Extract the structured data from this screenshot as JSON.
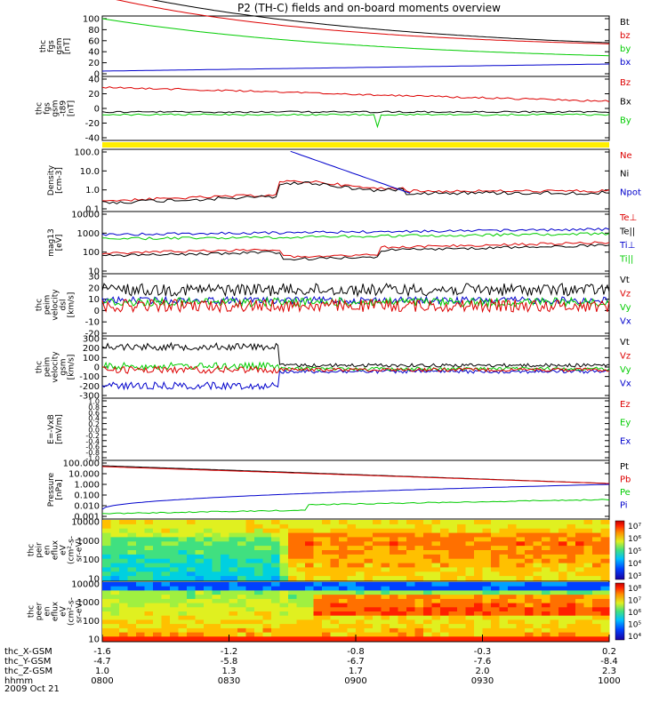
{
  "chart_data": {
    "type": "line",
    "title": "P2 (TH-C) fields and on-board moments overview",
    "date": "2009 Oct 21",
    "x_tick_labels": [
      "0800",
      "0830",
      "0900",
      "0930",
      "1000"
    ],
    "x_range_hhmm": [
      "0800",
      "1000"
    ],
    "ephemeris": [
      {
        "label": "thc_X-GSM",
        "values": [
          "-1.6",
          "-1.2",
          "-0.8",
          "-0.3",
          "0.2"
        ]
      },
      {
        "label": "thc_Y-GSM",
        "values": [
          "-4.7",
          "-5.8",
          "-6.7",
          "-7.6",
          "-8.4"
        ]
      },
      {
        "label": "thc_Z-GSM",
        "values": [
          "1.0",
          "1.3",
          "1.7",
          "2.0",
          "2.3"
        ]
      },
      {
        "label": "hhmm",
        "values": [
          "0800",
          "0830",
          "0900",
          "0930",
          "1000"
        ]
      }
    ],
    "panels": [
      {
        "ylabel": [
          "thc",
          "fgs",
          "gsm",
          "[nT]"
        ],
        "ticks": [
          "100",
          "80",
          "60",
          "40",
          "20",
          "0"
        ],
        "series": [
          {
            "name": "Bt",
            "color": "#000000"
          },
          {
            "name": "bz",
            "color": "#dd0000"
          },
          {
            "name": "by",
            "color": "#00cc00"
          },
          {
            "name": "bx",
            "color": "#0000cc"
          }
        ]
      },
      {
        "ylabel": [
          "thc",
          "fgs",
          "gsm",
          "-t89",
          "[nT]"
        ],
        "ticks": [
          "40",
          "20",
          "0",
          "-20",
          "-40"
        ],
        "series": [
          {
            "name": "Bz",
            "color": "#dd0000"
          },
          {
            "name": "Bx",
            "color": "#000000"
          },
          {
            "name": "By",
            "color": "#00cc00"
          }
        ]
      },
      {
        "ylabel": [],
        "ticks": [],
        "series": [],
        "flag_color": "#ffee00"
      },
      {
        "ylabel": [
          "Density",
          "[cm-3]"
        ],
        "ticks": [
          "100.0",
          "10.0",
          "1.0",
          "0.1"
        ],
        "log": true,
        "series": [
          {
            "name": "Ne",
            "color": "#dd0000"
          },
          {
            "name": "Ni",
            "color": "#000000"
          },
          {
            "name": "Npot",
            "color": "#0000cc"
          }
        ]
      },
      {
        "ylabel": [
          "mag13",
          "[eV]"
        ],
        "ticks": [
          "10000",
          "1000",
          "100",
          "10"
        ],
        "log": true,
        "series": [
          {
            "name": "Te⊥",
            "color": "#dd0000"
          },
          {
            "name": "Te||",
            "color": "#000000"
          },
          {
            "name": "Ti⊥",
            "color": "#0000cc"
          },
          {
            "name": "Ti||",
            "color": "#00cc00"
          }
        ]
      },
      {
        "ylabel": [
          "thc",
          "peim",
          "velocity",
          "dsl",
          "[km/s]"
        ],
        "ticks": [
          "30",
          "20",
          "10",
          "0",
          "-10",
          "-20"
        ],
        "series": [
          {
            "name": "Vt",
            "color": "#000000"
          },
          {
            "name": "Vz",
            "color": "#dd0000"
          },
          {
            "name": "Vy",
            "color": "#00cc00"
          },
          {
            "name": "Vx",
            "color": "#0000cc"
          }
        ]
      },
      {
        "ylabel": [
          "thc",
          "peim",
          "velocity",
          "gsm",
          "[km/s]"
        ],
        "ticks": [
          "300",
          "200",
          "100",
          "0",
          "-100",
          "-200",
          "-300"
        ],
        "series": [
          {
            "name": "Vt",
            "color": "#000000"
          },
          {
            "name": "Vz",
            "color": "#dd0000"
          },
          {
            "name": "Vy",
            "color": "#00cc00"
          },
          {
            "name": "Vx",
            "color": "#0000cc"
          }
        ]
      },
      {
        "ylabel": [
          "E=-VxB",
          "[mV/m]"
        ],
        "ticks": [
          "1.0",
          "0.8",
          "0.6",
          "0.4",
          "0.2",
          "0.0",
          "-0.2",
          "-0.4",
          "-0.6",
          "-0.8",
          "-1.0"
        ],
        "series": [
          {
            "name": "Ez",
            "color": "#dd0000"
          },
          {
            "name": "Ey",
            "color": "#00cc00"
          },
          {
            "name": "Ex",
            "color": "#0000cc"
          }
        ]
      },
      {
        "ylabel": [
          "Pressure",
          "[nPa]"
        ],
        "ticks": [
          "100.000",
          "10.000",
          "1.000",
          "0.100",
          "0.010",
          "0.001"
        ],
        "log": true,
        "series": [
          {
            "name": "Pt",
            "color": "#000000"
          },
          {
            "name": "Pb",
            "color": "#dd0000"
          },
          {
            "name": "Pe",
            "color": "#00cc00"
          },
          {
            "name": "Pi",
            "color": "#0000cc"
          }
        ]
      },
      {
        "ylabel": [
          "thc",
          "peir",
          "en",
          "eflux",
          "eV",
          "(cm²-s-",
          "sr-eV)"
        ],
        "ticks": [
          "10000",
          "1000",
          "100",
          "10"
        ],
        "spectrogram": true,
        "colorbar_ticks": [
          "10⁷",
          "10⁶",
          "10⁵",
          "10⁴",
          "10³"
        ]
      },
      {
        "ylabel": [
          "thc",
          "peer",
          "en",
          "eflux",
          "eV",
          "(cm²-s-",
          "sr-eV)"
        ],
        "ticks": [
          "10000",
          "1000",
          "100",
          "10"
        ],
        "spectrogram": true,
        "colorbar_ticks": [
          "10⁸",
          "10⁷",
          "10⁶",
          "10⁵",
          "10⁴"
        ]
      }
    ]
  }
}
